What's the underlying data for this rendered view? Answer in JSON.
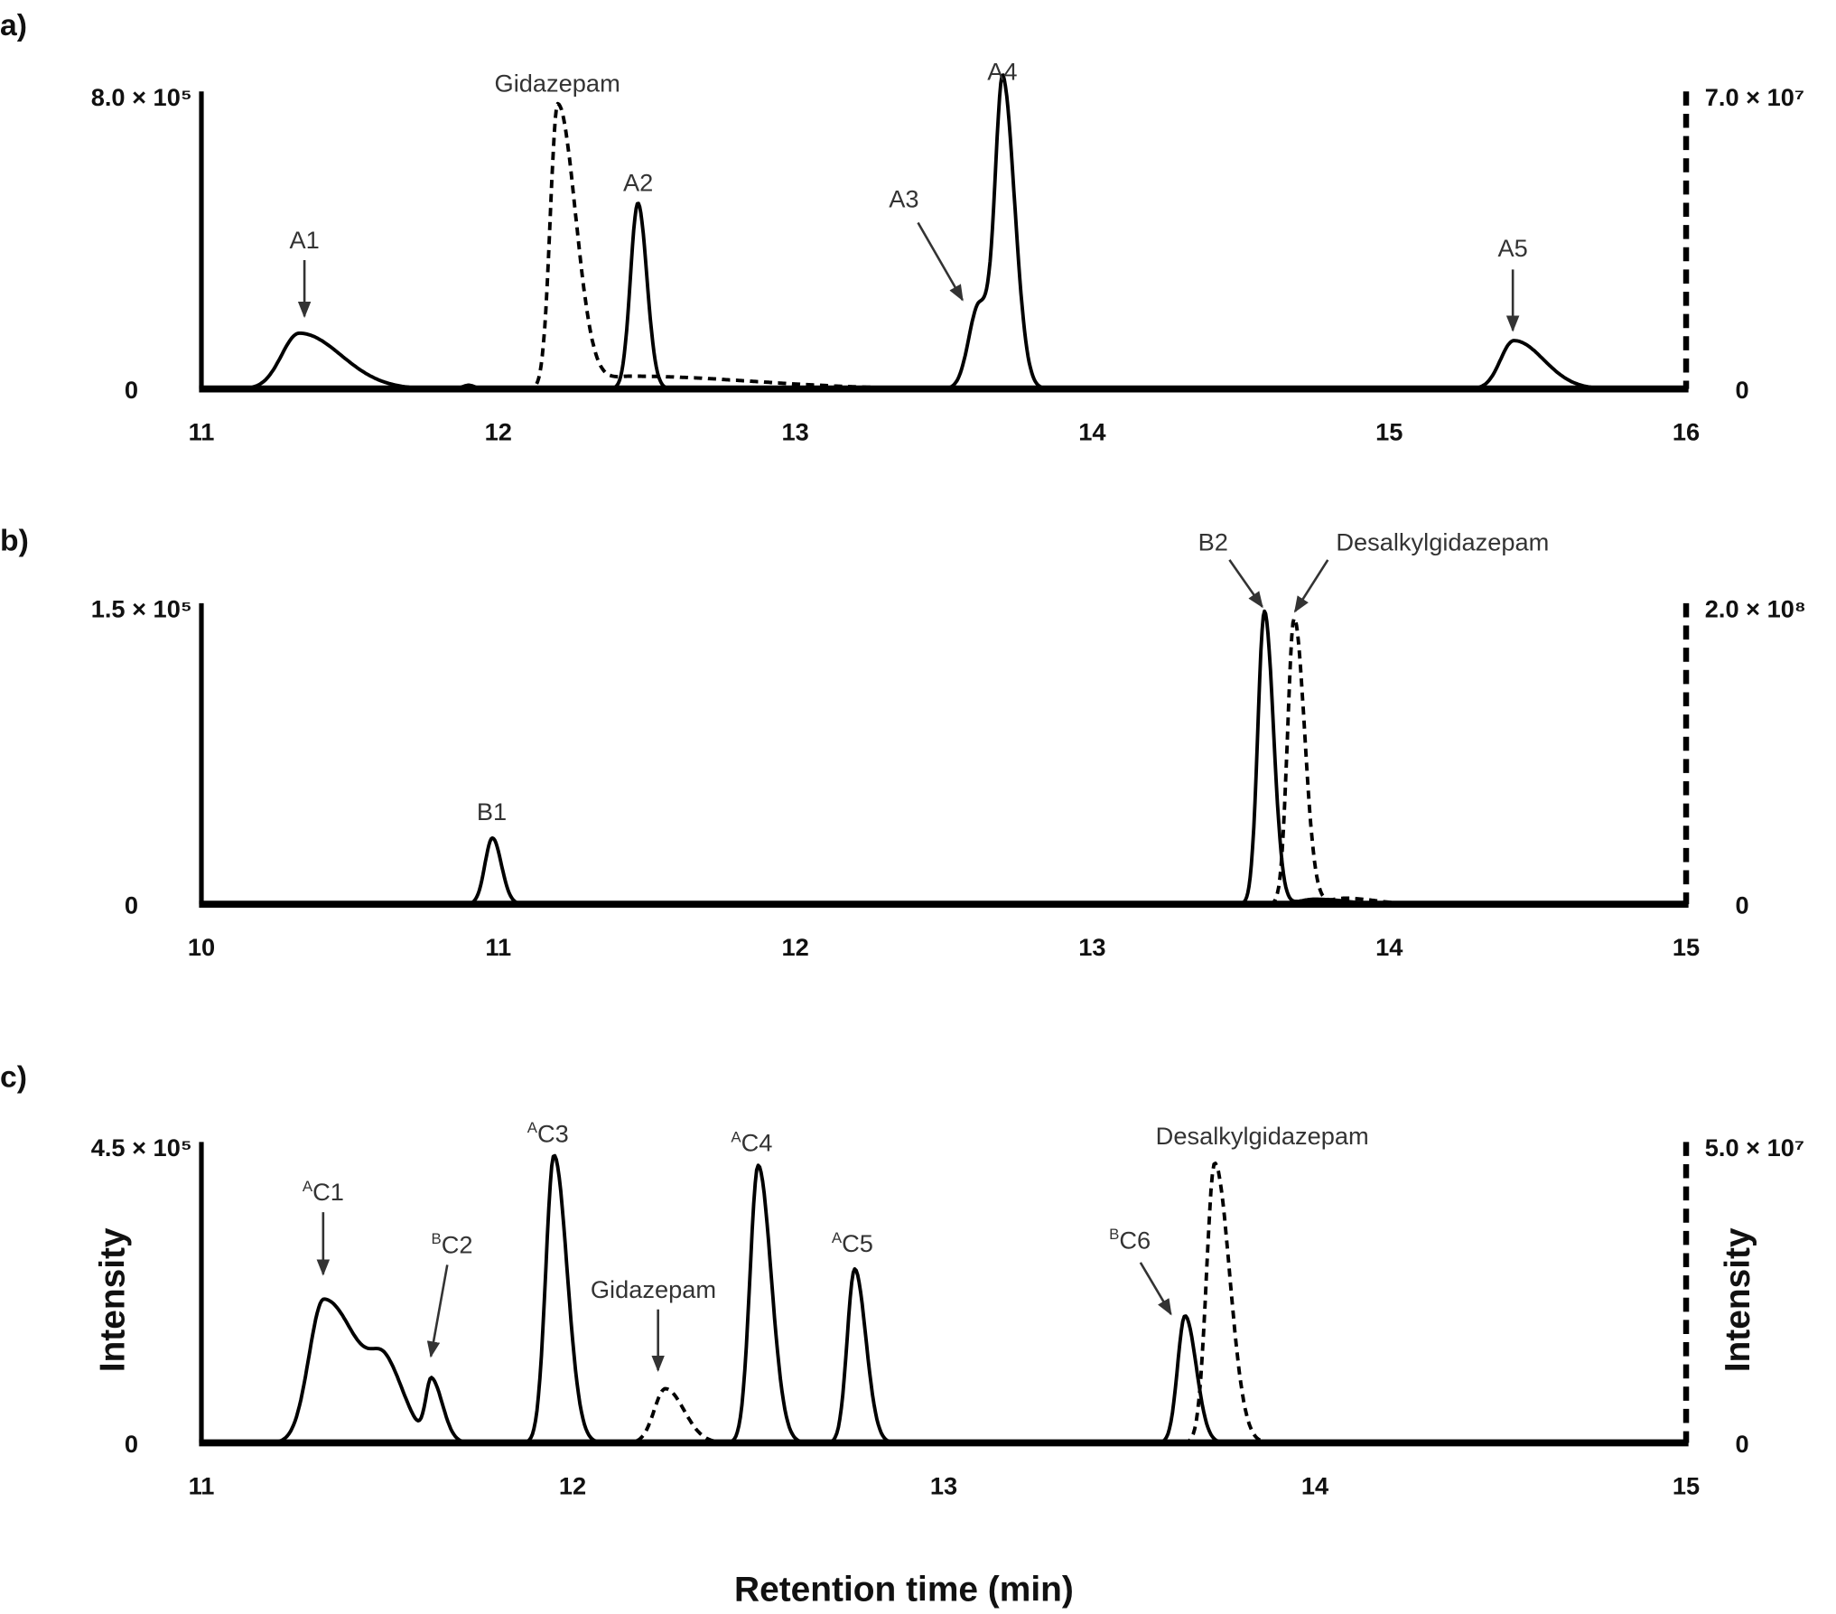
{
  "chart_data": [
    {
      "type": "line",
      "panel_label": "a)",
      "xlim": [
        11,
        16
      ],
      "x_ticks": [
        "11",
        "12",
        "13",
        "14",
        "15",
        "16"
      ],
      "left_axis": {
        "max": 800000,
        "top_label": "8.0 × 10⁵",
        "zero_label": "0",
        "style": "solid"
      },
      "right_axis": {
        "max": 70000000,
        "top_label": "7.0 × 10⁷",
        "zero_label": "0",
        "style": "dashed"
      },
      "series": [
        {
          "axis": "left",
          "style": "solid",
          "peaks": [
            {
              "rt": 11.33,
              "height": 150000,
              "sl": 0.06,
              "sr": 0.14
            },
            {
              "rt": 11.9,
              "height": 10000,
              "sl": 0.02,
              "sr": 0.02
            },
            {
              "rt": 12.47,
              "height": 500000,
              "sl": 0.025,
              "sr": 0.03
            },
            {
              "rt": 13.62,
              "height": 230000,
              "sl": 0.035,
              "sr": 0.05
            },
            {
              "rt": 13.7,
              "height": 780000,
              "sl": 0.025,
              "sr": 0.04
            },
            {
              "rt": 15.42,
              "height": 130000,
              "sl": 0.045,
              "sr": 0.1
            }
          ]
        },
        {
          "axis": "right",
          "style": "dashed",
          "peaks": [
            {
              "rt": 12.2,
              "height": 67000000,
              "sl": 0.025,
              "sr": 0.06
            },
            {
              "rt": 12.45,
              "height": 3000000,
              "sl": 0.1,
              "sr": 0.4
            }
          ]
        }
      ],
      "annotations": [
        {
          "text": "Gidazepam",
          "sup": ""
        },
        {
          "text": "A1",
          "sup": ""
        },
        {
          "text": "A2",
          "sup": ""
        },
        {
          "text": "A3",
          "sup": ""
        },
        {
          "text": "A4",
          "sup": ""
        },
        {
          "text": "A5",
          "sup": ""
        }
      ]
    },
    {
      "type": "line",
      "panel_label": "b)",
      "xlim": [
        10,
        15
      ],
      "x_ticks": [
        "10",
        "11",
        "12",
        "13",
        "14",
        "15"
      ],
      "left_axis": {
        "max": 150000,
        "top_label": "1.5 × 10⁵",
        "zero_label": "0",
        "style": "solid"
      },
      "right_axis": {
        "max": 200000000,
        "top_label": "2.0 × 10⁸",
        "zero_label": "0",
        "style": "dashed"
      },
      "series": [
        {
          "axis": "left",
          "style": "solid",
          "peaks": [
            {
              "rt": 10.98,
              "height": 33000,
              "sl": 0.025,
              "sr": 0.03
            },
            {
              "rt": 13.58,
              "height": 146000,
              "sl": 0.022,
              "sr": 0.03
            },
            {
              "rt": 13.75,
              "height": 2500,
              "sl": 0.05,
              "sr": 0.1
            }
          ]
        },
        {
          "axis": "right",
          "style": "dashed",
          "peaks": [
            {
              "rt": 13.68,
              "height": 190000000,
              "sl": 0.022,
              "sr": 0.035
            },
            {
              "rt": 13.85,
              "height": 4000000,
              "sl": 0.05,
              "sr": 0.1
            }
          ]
        }
      ],
      "annotations": [
        {
          "text": "B1",
          "sup": ""
        },
        {
          "text": "B2",
          "sup": ""
        },
        {
          "text": "Desalkylgidazepam",
          "sup": ""
        }
      ]
    },
    {
      "type": "line",
      "panel_label": "c)",
      "xlim": [
        11,
        15
      ],
      "x_ticks": [
        "11",
        "12",
        "13",
        "14",
        "15"
      ],
      "ylabel_left": "Intensity",
      "ylabel_right": "Intensity",
      "xlabel": "Retention time (min)",
      "left_axis": {
        "max": 450000,
        "top_label": "4.5 × 10⁵",
        "zero_label": "0",
        "style": "solid"
      },
      "right_axis": {
        "max": 50000000,
        "top_label": "5.0 × 10⁷",
        "zero_label": "0",
        "style": "dashed"
      },
      "series": [
        {
          "axis": "left",
          "style": "solid",
          "peaks": [
            {
              "rt": 11.33,
              "height": 215000,
              "sl": 0.04,
              "sr": 0.1
            },
            {
              "rt": 11.5,
              "height": 80000,
              "sl": 0.04,
              "sr": 0.05
            },
            {
              "rt": 11.62,
              "height": 90000,
              "sl": 0.015,
              "sr": 0.03
            },
            {
              "rt": 11.95,
              "height": 430000,
              "sl": 0.022,
              "sr": 0.035
            },
            {
              "rt": 12.5,
              "height": 415000,
              "sl": 0.022,
              "sr": 0.035
            },
            {
              "rt": 12.76,
              "height": 260000,
              "sl": 0.02,
              "sr": 0.03
            },
            {
              "rt": 13.65,
              "height": 190000,
              "sl": 0.02,
              "sr": 0.03
            }
          ]
        },
        {
          "axis": "right",
          "style": "dashed",
          "peaks": [
            {
              "rt": 12.25,
              "height": 9000000,
              "sl": 0.03,
              "sr": 0.05
            },
            {
              "rt": 13.73,
              "height": 46500000,
              "sl": 0.022,
              "sr": 0.04
            }
          ]
        }
      ],
      "annotations": [
        {
          "text": "C1",
          "sup": "A"
        },
        {
          "text": "C2",
          "sup": "B"
        },
        {
          "text": "C3",
          "sup": "A"
        },
        {
          "text": "Gidazepam",
          "sup": ""
        },
        {
          "text": "C4",
          "sup": "A"
        },
        {
          "text": "C5",
          "sup": "A"
        },
        {
          "text": "C6",
          "sup": "B"
        },
        {
          "text": "Desalkylgidazepam",
          "sup": ""
        }
      ]
    }
  ]
}
